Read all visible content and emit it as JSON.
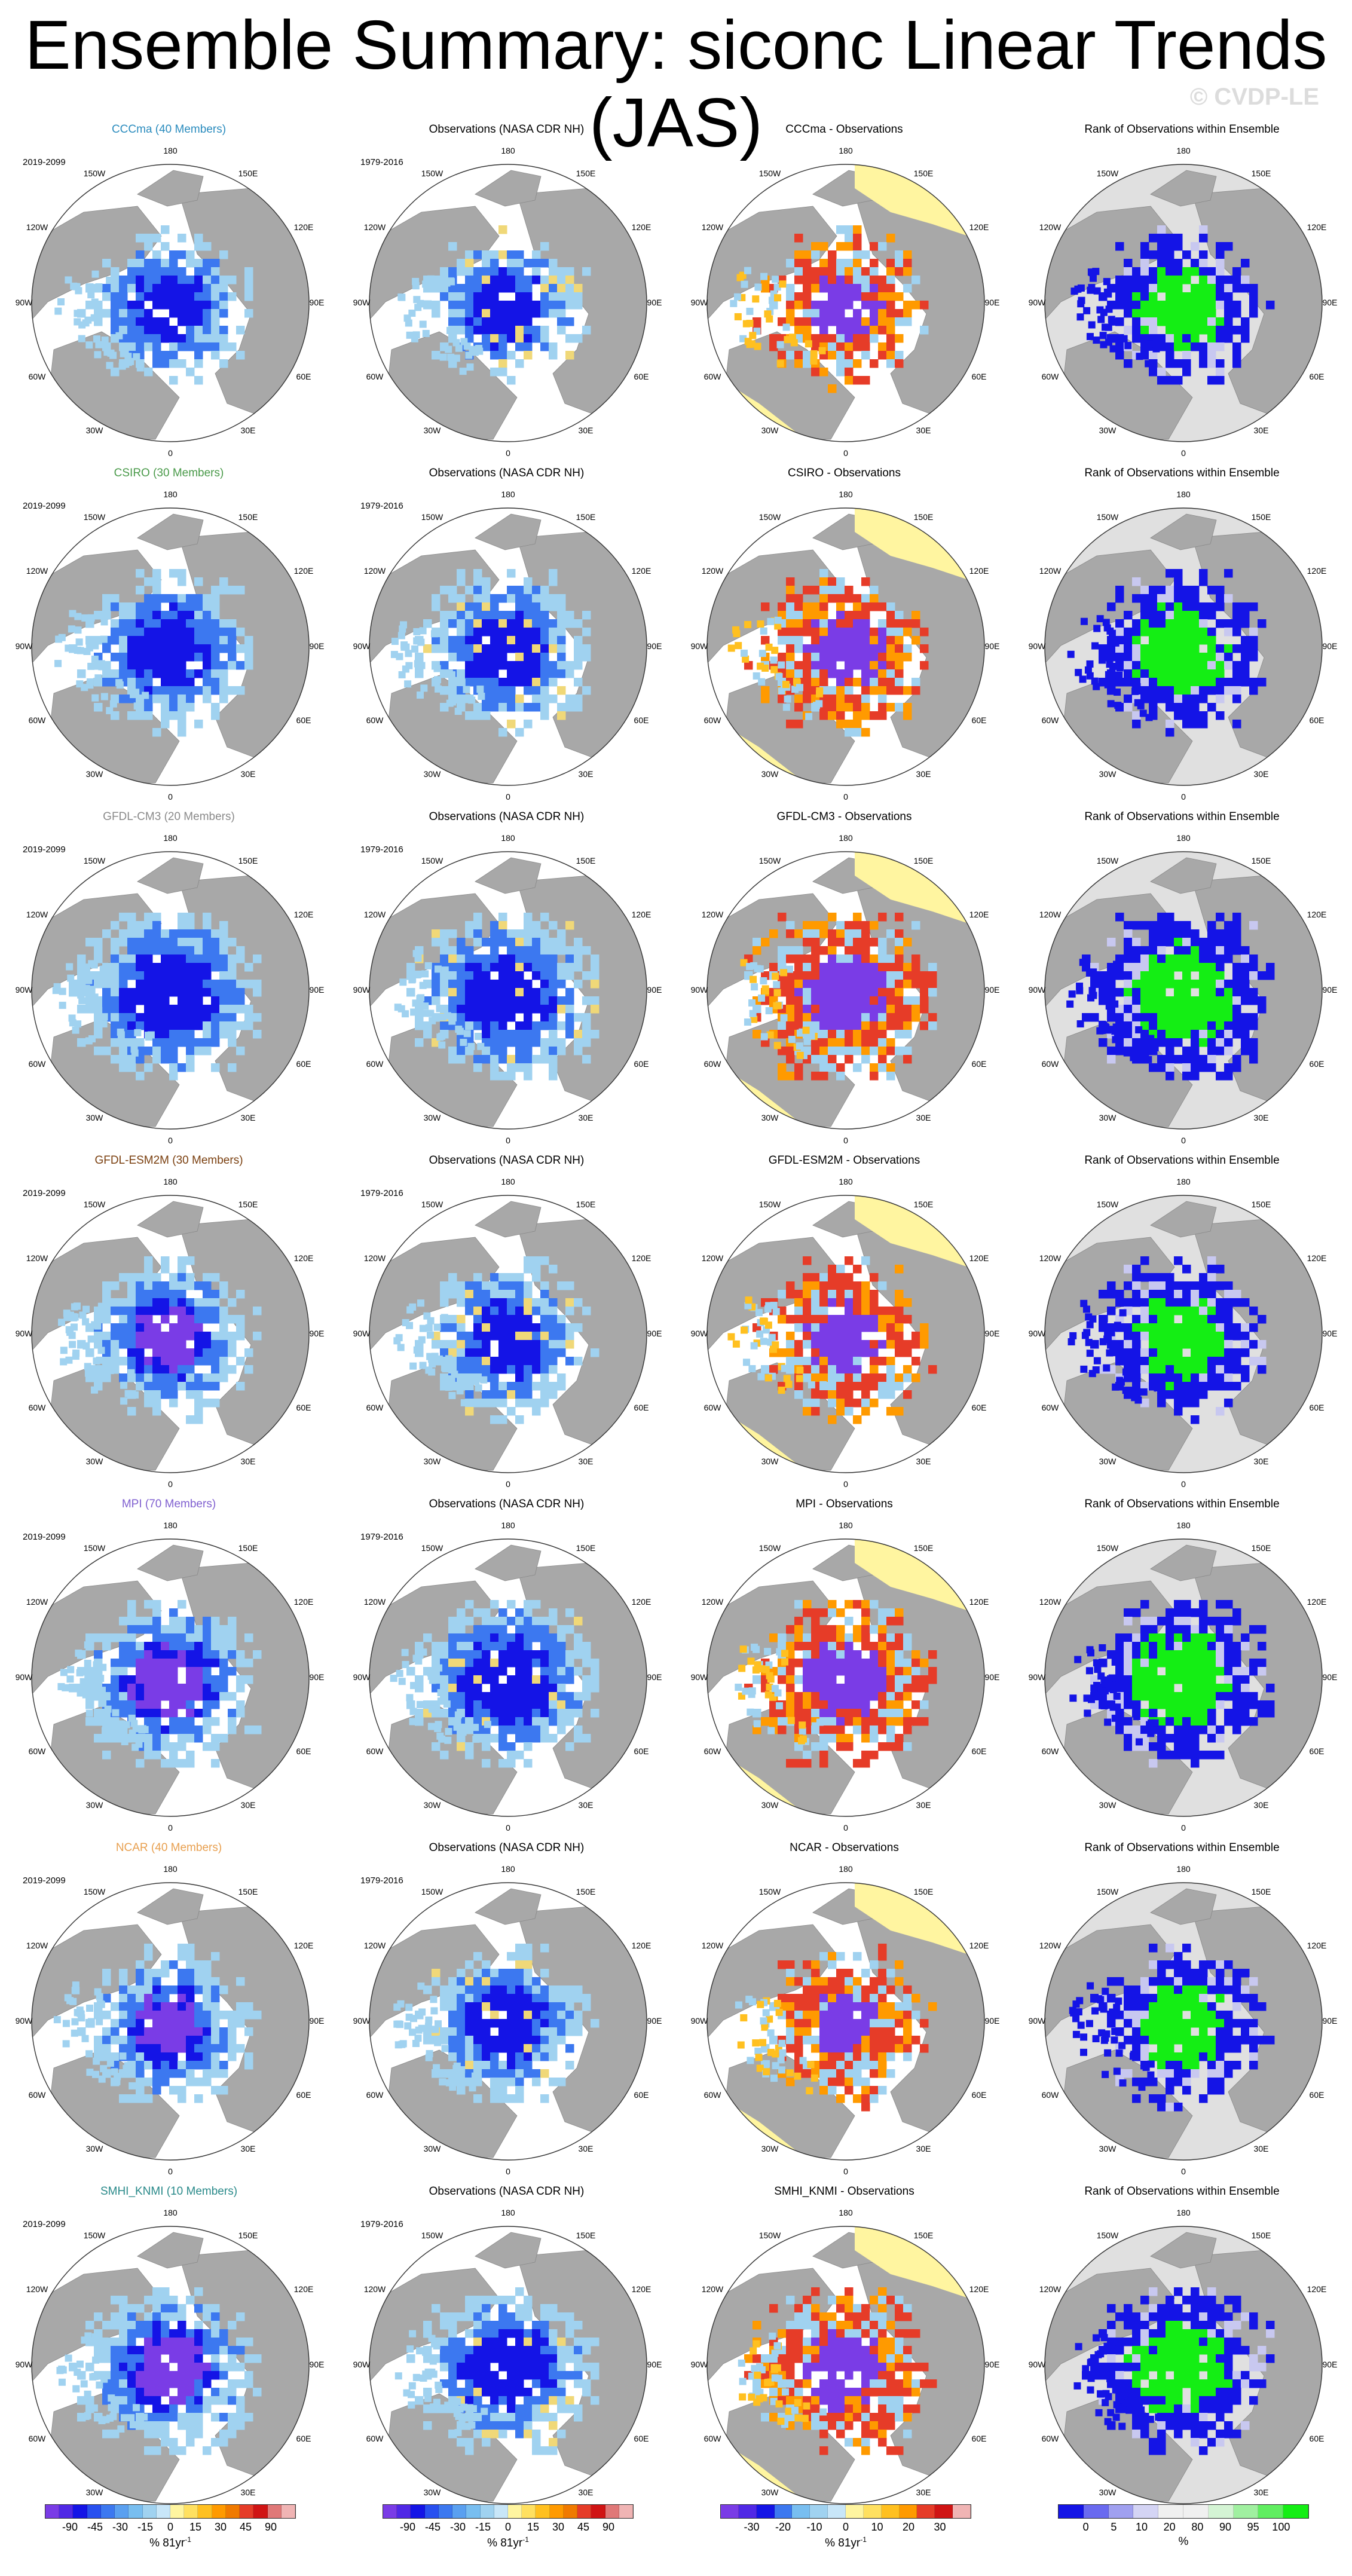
{
  "title": "Ensemble Summary: siconc Linear Trends (JAS)",
  "watermark": "© CVDP-LE",
  "map_labels": [
    "180",
    "150W",
    "150E",
    "120W",
    "120E",
    "90W",
    "90E",
    "60W",
    "60E",
    "30W",
    "30E",
    "0"
  ],
  "colors": {
    "land": "#a8a8a8",
    "blue_dark": "#1414e6",
    "blue_mid": "#3c78f0",
    "blue_light": "#a0d2f0",
    "purple": "#7a3ce6",
    "yellow": "#fff5a0",
    "red": "#e63c28",
    "green": "#14ee14",
    "rank_bg": "#e0e0e0"
  },
  "rows": [
    {
      "model": "CCCma (40 Members)",
      "model_color": "#2b8cbe",
      "model_period": "2019-2099",
      "obs_title": "Observations (NASA CDR NH)",
      "obs_period": "1979-2016",
      "diff_title": "CCCma - Observations",
      "rank_title": "Rank of Observations within Ensemble"
    },
    {
      "model": "CSIRO (30 Members)",
      "model_color": "#4a9a4a",
      "model_period": "2019-2099",
      "obs_title": "Observations (NASA CDR NH)",
      "obs_period": "1979-2016",
      "diff_title": "CSIRO - Observations",
      "rank_title": "Rank of Observations within Ensemble"
    },
    {
      "model": "GFDL-CM3 (20 Members)",
      "model_color": "#8a8a8a",
      "model_period": "2019-2099",
      "obs_title": "Observations (NASA CDR NH)",
      "obs_period": "1979-2016",
      "diff_title": "GFDL-CM3 - Observations",
      "rank_title": "Rank of Observations within Ensemble"
    },
    {
      "model": "GFDL-ESM2M (30 Members)",
      "model_color": "#7a3f0f",
      "model_period": "2019-2099",
      "obs_title": "Observations (NASA CDR NH)",
      "obs_period": "1979-2016",
      "diff_title": "GFDL-ESM2M - Observations",
      "rank_title": "Rank of Observations within Ensemble"
    },
    {
      "model": "MPI (70 Members)",
      "model_color": "#8060d0",
      "model_period": "2019-2099",
      "obs_title": "Observations (NASA CDR NH)",
      "obs_period": "1979-2016",
      "diff_title": "MPI - Observations",
      "rank_title": "Rank of Observations within Ensemble"
    },
    {
      "model": "NCAR (40 Members)",
      "model_color": "#e8a050",
      "model_period": "2019-2099",
      "obs_title": "Observations (NASA CDR NH)",
      "obs_period": "1979-2016",
      "diff_title": "NCAR - Observations",
      "rank_title": "Rank of Observations within Ensemble"
    },
    {
      "model": "SMHI_KNMI (10 Members)",
      "model_color": "#2a8a8a",
      "model_period": "2019-2099",
      "obs_title": "Observations (NASA CDR NH)",
      "obs_period": "1979-2016",
      "diff_title": "SMHI_KNMI - Observations",
      "rank_title": "Rank of Observations within Ensemble"
    }
  ],
  "colorbars": [
    {
      "label": "% 81yr",
      "label_sup": "-1",
      "ticks": [
        "-90",
        "-45",
        "-30",
        "-15",
        "0",
        "15",
        "30",
        "45",
        "90"
      ],
      "colors": [
        "#7a3ce6",
        "#5028e6",
        "#1414e6",
        "#2850f0",
        "#3c78f0",
        "#5aa0f0",
        "#78bef0",
        "#a0d2f0",
        "#c8e6f8",
        "#fff5a0",
        "#ffe060",
        "#ffc020",
        "#ff9a00",
        "#f07a00",
        "#e63c28",
        "#d01414",
        "#e07878",
        "#f0b4b4"
      ]
    },
    {
      "label": "% 81yr",
      "label_sup": "-1",
      "ticks": [
        "-90",
        "-45",
        "-30",
        "-15",
        "0",
        "15",
        "30",
        "45",
        "90"
      ],
      "colors": [
        "#7a3ce6",
        "#5028e6",
        "#1414e6",
        "#2850f0",
        "#3c78f0",
        "#5aa0f0",
        "#78bef0",
        "#a0d2f0",
        "#c8e6f8",
        "#fff5a0",
        "#ffe060",
        "#ffc020",
        "#ff9a00",
        "#f07a00",
        "#e63c28",
        "#d01414",
        "#e07878",
        "#f0b4b4"
      ]
    },
    {
      "label": "% 81yr",
      "label_sup": "-1",
      "ticks": [
        "-30",
        "-20",
        "-10",
        "0",
        "10",
        "20",
        "30"
      ],
      "colors": [
        "#7a3ce6",
        "#5028e6",
        "#1414e6",
        "#3c78f0",
        "#78bef0",
        "#a0d2f0",
        "#c8e6f8",
        "#fff5a0",
        "#ffe060",
        "#ffc020",
        "#ff9a00",
        "#e63c28",
        "#d01414",
        "#f0b4b4"
      ]
    },
    {
      "label": "%",
      "label_sup": "",
      "ticks": [
        "0",
        "5",
        "10",
        "20",
        "80",
        "90",
        "95",
        "100"
      ],
      "colors": [
        "#1414e6",
        "#6a6af0",
        "#a0a0f0",
        "#d4d4f4",
        "#f0f0f0",
        "#f0f0f0",
        "#d4f4d4",
        "#a0f0a0",
        "#60ee60",
        "#14ee14"
      ]
    }
  ]
}
